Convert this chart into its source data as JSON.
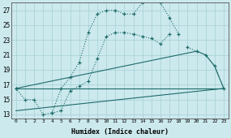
{
  "xlabel": "Humidex (Indice chaleur)",
  "background_color": "#cce9ed",
  "grid_color": "#aad4d9",
  "line_color": "#1e6b6b",
  "xlim": [
    -0.5,
    23.5
  ],
  "ylim": [
    12.5,
    28.0
  ],
  "xticks": [
    0,
    1,
    2,
    3,
    4,
    5,
    6,
    7,
    8,
    9,
    10,
    11,
    12,
    13,
    14,
    15,
    16,
    17,
    18,
    19,
    20,
    21,
    22,
    23
  ],
  "yticks": [
    13,
    15,
    17,
    19,
    21,
    23,
    25,
    27
  ],
  "line1_x": [
    0,
    1,
    2,
    3,
    4,
    5,
    6,
    7,
    8,
    9,
    10,
    11,
    12,
    13,
    14,
    15,
    16,
    17,
    18,
    19,
    20,
    21,
    22,
    23
  ],
  "line1_y": [
    16.5,
    15.0,
    15.0,
    13.0,
    13.2,
    16.5,
    18.0,
    20.0,
    24.0,
    26.5,
    27.0,
    27.0,
    26.5,
    26.5,
    28.0,
    28.5,
    28.0,
    26.0,
    23.8,
    null,
    null,
    null,
    null,
    null
  ],
  "line2_x": [
    0,
    1,
    2,
    3,
    4,
    5,
    6,
    7,
    8,
    9,
    10,
    11,
    12,
    13,
    14,
    15,
    16,
    17,
    18,
    19,
    20,
    21,
    22,
    23
  ],
  "line2_y": [
    16.5,
    null,
    null,
    null,
    13.2,
    13.5,
    16.2,
    16.8,
    17.5,
    20.5,
    23.5,
    24.0,
    24.0,
    23.8,
    23.5,
    23.2,
    22.5,
    23.8,
    null,
    22.0,
    21.5,
    21.0,
    19.5,
    16.5
  ],
  "line3_x": [
    0,
    23
  ],
  "line3_y": [
    16.5,
    16.5
  ],
  "line4_x": [
    0,
    23
  ],
  "line4_y": [
    13.5,
    16.5
  ],
  "line5_x": [
    0,
    20,
    21,
    22,
    23
  ],
  "line5_y": [
    16.5,
    21.5,
    21.0,
    19.5,
    16.5
  ]
}
